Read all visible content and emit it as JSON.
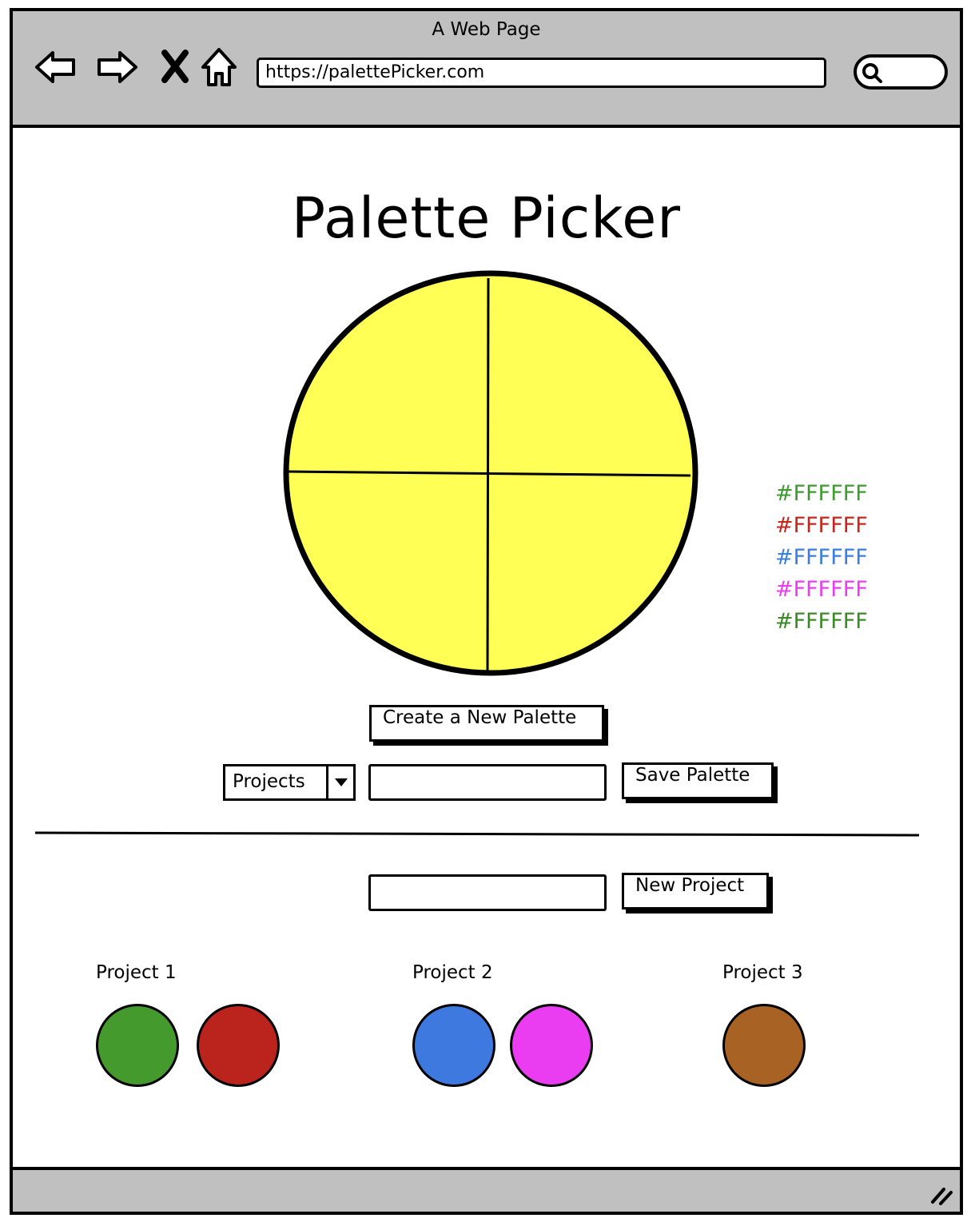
{
  "browser": {
    "window_title": "A Web Page",
    "url": "https://palettePicker.com",
    "nav_icons": [
      "back-arrow-icon",
      "forward-arrow-icon",
      "close-icon",
      "home-icon"
    ],
    "search_icon": "search-icon"
  },
  "page": {
    "title": "Palette Picker",
    "wheel_fill": "#FFFF55",
    "hex_codes": [
      {
        "label": "#FFFFFF",
        "color": "#3f9a2f"
      },
      {
        "label": "#FFFFFF",
        "color": "#c6261b"
      },
      {
        "label": "#FFFFFF",
        "color": "#3b7ee0"
      },
      {
        "label": "#FFFFFF",
        "color": "#ea3ef0"
      },
      {
        "label": "#FFFFFF",
        "color": "#3c8a27"
      }
    ],
    "create_palette_button": "Create a New Palette",
    "projects_select": "Projects",
    "palette_name_input": "",
    "save_palette_button": "Save Palette",
    "project_name_input": "",
    "new_project_button": "New Project"
  },
  "projects": [
    {
      "title": "Project 1",
      "swatches": [
        "#459a2e",
        "#bb241c"
      ]
    },
    {
      "title": "Project 2",
      "swatches": [
        "#3d79df",
        "#ea3cf1"
      ]
    },
    {
      "title": "Project 3",
      "swatches": [
        "#a86223"
      ]
    }
  ]
}
